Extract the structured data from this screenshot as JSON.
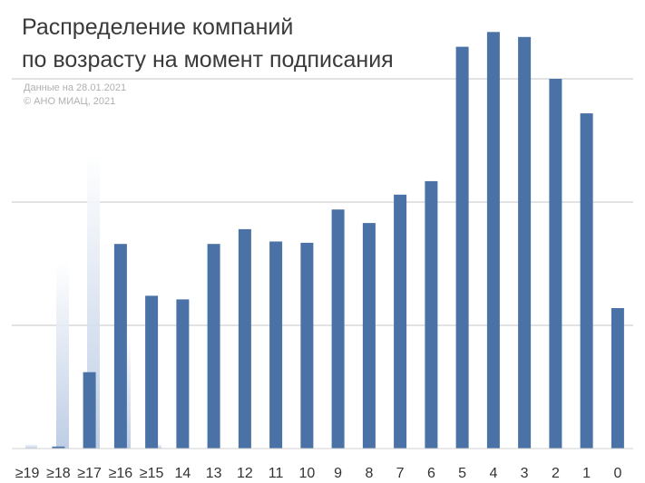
{
  "chart_data": {
    "type": "bar",
    "title_lines": [
      "Распределение компаний",
      "по возрасту на момент подписания"
    ],
    "notes": [
      "Данные на 28.01.2021",
      "© АНО МИАЦ, 2021"
    ],
    "categories": [
      "≥19",
      "≥18",
      "≥17",
      "≥16",
      "≥15",
      "14",
      "13",
      "12",
      "11",
      "10",
      "9",
      "8",
      "7",
      "6",
      "5",
      "4",
      "3",
      "2",
      "1",
      "0"
    ],
    "values": [
      0.02,
      0.08,
      3.1,
      8.3,
      6.2,
      6.05,
      8.3,
      8.9,
      8.4,
      8.35,
      9.7,
      9.15,
      10.3,
      10.85,
      16.3,
      16.9,
      16.7,
      15.0,
      13.6,
      5.7
    ],
    "ylim": [
      0,
      17.5
    ],
    "grid": true,
    "bar_color": "#4a72a6",
    "grid_color": "#d9d9d9",
    "xlabel": "",
    "ylabel": ""
  }
}
